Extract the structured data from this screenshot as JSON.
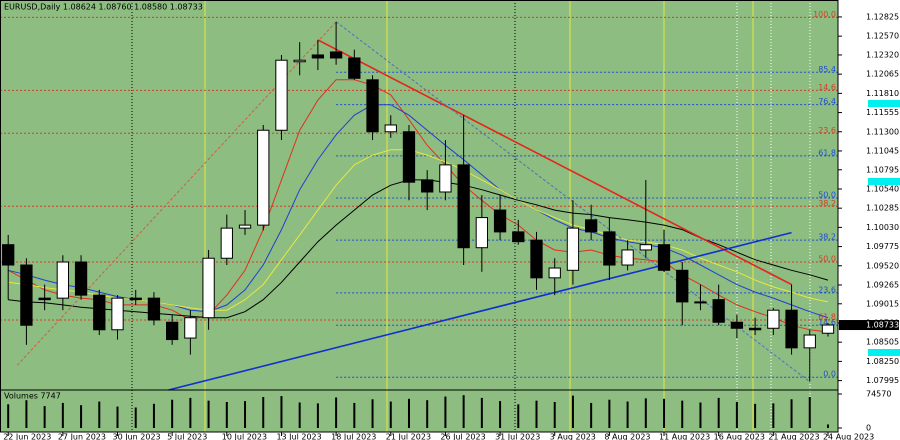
{
  "chart_data": {
    "type": "candlestick",
    "title": "EURUSD,Daily  1.08624 1.08760 1.08580 1.08733",
    "categories": [
      "22 Jun 2023",
      null,
      null,
      "27 Jun 2023",
      null,
      null,
      "30 Jun 2023",
      null,
      null,
      "5 Jul 2023",
      null,
      null,
      "10 Jul 2023",
      null,
      null,
      "13 Jul 2023",
      null,
      null,
      "18 Jul 2023",
      null,
      null,
      "21 Jul 2023",
      null,
      null,
      "26 Jul 2023",
      null,
      null,
      "31 Jul 2023",
      null,
      null,
      "3 Aug 2023",
      null,
      null,
      "8 Aug 2023",
      null,
      null,
      "11 Aug 2023",
      null,
      null,
      "16 Aug 2023",
      null,
      null,
      "21 Aug 2023",
      null,
      null,
      "24 Aug 2023"
    ],
    "open": [
      1.098,
      1.0953,
      1.0909,
      1.0909,
      1.0957,
      1.0913,
      1.0867,
      1.0909,
      1.0909,
      1.0877,
      1.0856,
      1.0883,
      1.0962,
      1.1002,
      1.1006,
      1.1132,
      1.1223,
      1.1232,
      1.1236,
      1.1228,
      1.1199,
      1.113,
      1.113,
      1.1066,
      1.105,
      1.1086,
      1.0976,
      1.1026,
      1.0997,
      1.0986,
      1.0936,
      1.0946,
      1.1013,
      1.0997,
      1.0953,
      1.0973,
      1.098,
      1.0946,
      1.0904,
      1.0907,
      1.0877,
      1.0869,
      1.0869,
      1.0893,
      1.0843,
      1.08624
    ],
    "high": [
      1.0993,
      1.0962,
      1.0927,
      1.0966,
      1.0966,
      1.092,
      1.0913,
      1.092,
      1.0917,
      1.0887,
      1.0893,
      1.0973,
      1.102,
      1.1026,
      1.1139,
      1.1232,
      1.1249,
      1.1252,
      1.1276,
      1.1239,
      1.1205,
      1.1152,
      1.1139,
      1.1079,
      1.1119,
      1.1152,
      1.1046,
      1.1046,
      1.1013,
      1.0997,
      1.0962,
      1.1039,
      1.1033,
      1.1016,
      1.0986,
      1.1066,
      1.1,
      1.0957,
      1.0927,
      1.0927,
      1.0887,
      1.0883,
      1.0896,
      1.0927,
      1.0867,
      1.0876
    ],
    "low": [
      1.0907,
      1.0847,
      1.0893,
      1.0893,
      1.0907,
      1.086,
      1.0854,
      1.09,
      1.0873,
      1.0847,
      1.0834,
      1.0867,
      1.0953,
      1.0993,
      1.0999,
      1.1119,
      1.1205,
      1.1212,
      1.1219,
      1.1199,
      1.1119,
      1.1122,
      1.1039,
      1.1026,
      1.1039,
      1.0953,
      1.0944,
      1.0986,
      1.098,
      1.092,
      1.0913,
      1.0927,
      1.0986,
      1.0933,
      1.0946,
      1.0962,
      1.0944,
      1.0873,
      1.0893,
      1.0873,
      1.0856,
      1.086,
      1.086,
      1.0834,
      1.0798,
      1.0858
    ],
    "close": [
      1.0953,
      1.0873,
      1.0907,
      1.0957,
      1.0913,
      1.0867,
      1.0909,
      1.0907,
      1.088,
      1.0854,
      1.0883,
      1.0962,
      1.1002,
      1.1006,
      1.1132,
      1.1225,
      1.1225,
      1.1228,
      1.1228,
      1.1201,
      1.113,
      1.1139,
      1.1063,
      1.105,
      1.1086,
      1.0976,
      1.1016,
      1.0997,
      1.0984,
      1.0936,
      1.0949,
      1.1002,
      1.0997,
      1.0953,
      1.0973,
      1.098,
      1.0946,
      1.0904,
      1.0903,
      1.0877,
      1.0869,
      1.0867,
      1.0893,
      1.0843,
      1.086,
      1.08733
    ],
    "bull_color": "#ffffff",
    "bear_color": "#000000",
    "series": [
      {
        "color": "#e03020",
        "values": [
          1.0946,
          1.0933,
          1.092,
          1.0913,
          1.0909,
          1.0907,
          1.09,
          1.09,
          1.09,
          1.0893,
          1.088,
          1.0887,
          1.0913,
          1.0946,
          1.1,
          1.1066,
          1.1132,
          1.1172,
          1.1199,
          1.1199,
          1.1192,
          1.1179,
          1.1146,
          1.1112,
          1.1086,
          1.1059,
          1.1039,
          1.102,
          1.1006,
          1.0986,
          1.0973,
          1.097,
          1.0973,
          1.0966,
          1.0962,
          1.096,
          1.0957,
          1.094,
          1.0927,
          1.0913,
          1.09,
          1.0891,
          1.0883,
          1.0873,
          1.0867,
          1.0864
        ]
      },
      {
        "color": "#2040d0",
        "values": [
          1.0946,
          1.094,
          1.0933,
          1.0927,
          1.0923,
          1.0917,
          1.0911,
          1.0907,
          1.0904,
          1.09,
          1.0893,
          1.0891,
          1.09,
          1.092,
          1.0953,
          1.1,
          1.1053,
          1.1093,
          1.1126,
          1.1152,
          1.1166,
          1.1166,
          1.1152,
          1.1132,
          1.1112,
          1.1093,
          1.1073,
          1.1053,
          1.1039,
          1.1026,
          1.1013,
          1.1002,
          1.0997,
          1.0989,
          1.0984,
          1.098,
          1.0976,
          1.0966,
          1.0953,
          1.094,
          1.0927,
          1.0917,
          1.0909,
          1.09,
          1.0891,
          1.0883
        ]
      },
      {
        "color": "#e8e840",
        "values": [
          1.093,
          1.0927,
          1.0923,
          1.092,
          1.0917,
          1.0913,
          1.0909,
          1.0907,
          1.0904,
          1.09,
          1.0896,
          1.0893,
          1.0893,
          1.0907,
          1.0927,
          1.096,
          1.0993,
          1.1026,
          1.1059,
          1.1086,
          1.1099,
          1.1106,
          1.1106,
          1.1099,
          1.109,
          1.1079,
          1.1066,
          1.1053,
          1.1039,
          1.1026,
          1.1016,
          1.1006,
          1.1,
          1.0993,
          1.0986,
          1.0984,
          1.098,
          1.0973,
          1.0962,
          1.0953,
          1.0944,
          1.0933,
          1.0924,
          1.0917,
          1.0909,
          1.0904
        ]
      },
      {
        "color": "#000000",
        "values": [
          1.0907,
          1.0904,
          1.0903,
          1.09,
          1.0897,
          1.0895,
          1.0893,
          1.0891,
          1.0889,
          1.0887,
          1.0885,
          1.0883,
          1.0883,
          1.0891,
          1.0907,
          1.093,
          1.0957,
          1.0984,
          1.1006,
          1.1026,
          1.1046,
          1.1059,
          1.1066,
          1.1066,
          1.1063,
          1.1059,
          1.1053,
          1.1046,
          1.1039,
          1.1033,
          1.1026,
          1.1022,
          1.102,
          1.1016,
          1.1013,
          1.101,
          1.1006,
          1.1,
          1.0989,
          1.098,
          1.097,
          1.096,
          1.0953,
          1.0946,
          1.094,
          1.0933
        ]
      }
    ],
    "trendlines": [
      {
        "color": "#e8231a",
        "x": [
          17,
          43
        ],
        "y": [
          1.1252,
          1.0927
        ]
      },
      {
        "color": "#1030d0",
        "x": [
          8.8,
          43
        ],
        "y": [
          1.0787,
          1.0996
        ]
      },
      {
        "color": "#5070c0",
        "dash": true,
        "x": [
          18,
          44
        ],
        "y": [
          1.1276,
          1.0798
        ]
      },
      {
        "color": "#d06040",
        "dash": true,
        "x": [
          0.5,
          18
        ],
        "y": [
          1.082,
          1.1276
        ]
      }
    ],
    "fib_levels": [
      {
        "value": 1.1282,
        "label": "100.0",
        "color": "#d0402a"
      },
      {
        "value": 1.1209,
        "label": "85.4",
        "color": "#2050d0"
      },
      {
        "value": 1.1185,
        "label": "14.6",
        "color": "#d0402a"
      },
      {
        "value": 1.1166,
        "label": "76.4",
        "color": "#2050d0"
      },
      {
        "value": 1.1128,
        "label": "23.6",
        "color": "#d0402a"
      },
      {
        "value": 1.1098,
        "label": "61.8",
        "color": "#2050d0"
      },
      {
        "value": 1.1042,
        "label": "50.0",
        "color": "#2050d0"
      },
      {
        "value": 1.1031,
        "label": "38.2",
        "color": "#d0402a"
      },
      {
        "value": 1.0986,
        "label": "38.2",
        "color": "#2050d0"
      },
      {
        "value": 1.0957,
        "label": "50.0",
        "color": "#d0402a"
      },
      {
        "value": 1.0916,
        "label": "23.6",
        "color": "#2050d0"
      },
      {
        "value": 1.088,
        "label": "61.8",
        "color": "#d0402a"
      },
      {
        "value": 1.0873,
        "label": "14.6",
        "color": "#2050d0"
      },
      {
        "value": 1.0804,
        "label": "0.0",
        "color": "#2050d0"
      }
    ],
    "ylim": [
      1.0787,
      1.1305
    ],
    "yticks": [
      1.12825,
      {
        "value": 1.1257,
        "label": "1.12570"
      },
      {
        "value": 1.1232,
        "label": "1.12320"
      },
      1.12065,
      {
        "value": 1.1181,
        "label": "1.11810"
      },
      1.11555,
      {
        "value": 1.113,
        "label": "1.11300"
      },
      1.11045,
      1.10795,
      {
        "value": 1.1054,
        "label": "1.10540"
      },
      1.10285,
      {
        "value": 1.1003,
        "label": "1.10030"
      },
      1.09775,
      {
        "value": 1.0952,
        "label": "1.09520"
      },
      1.09265,
      1.09015,
      {
        "value": 1.0876,
        "label": "1.08760"
      },
      1.08505,
      {
        "value": 1.0825,
        "label": "1.08250"
      },
      1.07995
    ],
    "volume_label": "Volumes 7747",
    "volumes": [
      52000,
      61000,
      48000,
      55000,
      50000,
      58000,
      47000,
      45000,
      53000,
      62000,
      66000,
      60000,
      57000,
      59000,
      68000,
      70000,
      56000,
      54000,
      67000,
      55000,
      63000,
      58000,
      64000,
      61000,
      69000,
      72000,
      66000,
      59000,
      52000,
      60000,
      57000,
      71000,
      55000,
      62000,
      58000,
      65000,
      64000,
      60000,
      56000,
      66000,
      57000,
      53000,
      54000,
      63000,
      68000,
      7747
    ],
    "volume_ylim": [
      0,
      74570
    ],
    "volume_yticks": [
      74570,
      0
    ]
  }
}
